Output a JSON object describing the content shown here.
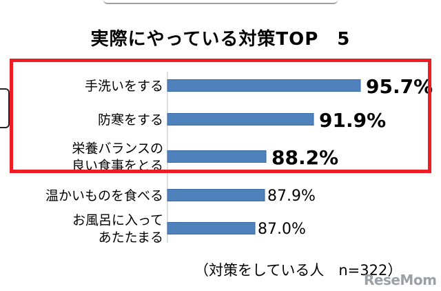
{
  "title": "実際にやっている対策TOP　5",
  "note": "（対策をしている人　n=322）",
  "watermark": "ReseMom",
  "colors": {
    "bar": "#4f81bd",
    "bar_edge": "#3a6aa5",
    "highlight": "#ee1c25"
  },
  "chart_data": {
    "type": "bar",
    "orientation": "horizontal",
    "title": "実際にやっている対策TOP　5",
    "categories": [
      [
        "手洗いをする"
      ],
      [
        "防寒をする"
      ],
      [
        "栄養バランスの",
        "良い食事をとる"
      ],
      [
        "温かいものを食べる"
      ],
      [
        "お風呂に入って",
        "あたたまる"
      ]
    ],
    "values": [
      95.7,
      91.9,
      88.2,
      87.9,
      87.0
    ],
    "value_labels": [
      "95.7%",
      "91.9%",
      "88.2%",
      "87.9%",
      "87.0%"
    ],
    "highlighted_top": 3,
    "unit": "%"
  }
}
